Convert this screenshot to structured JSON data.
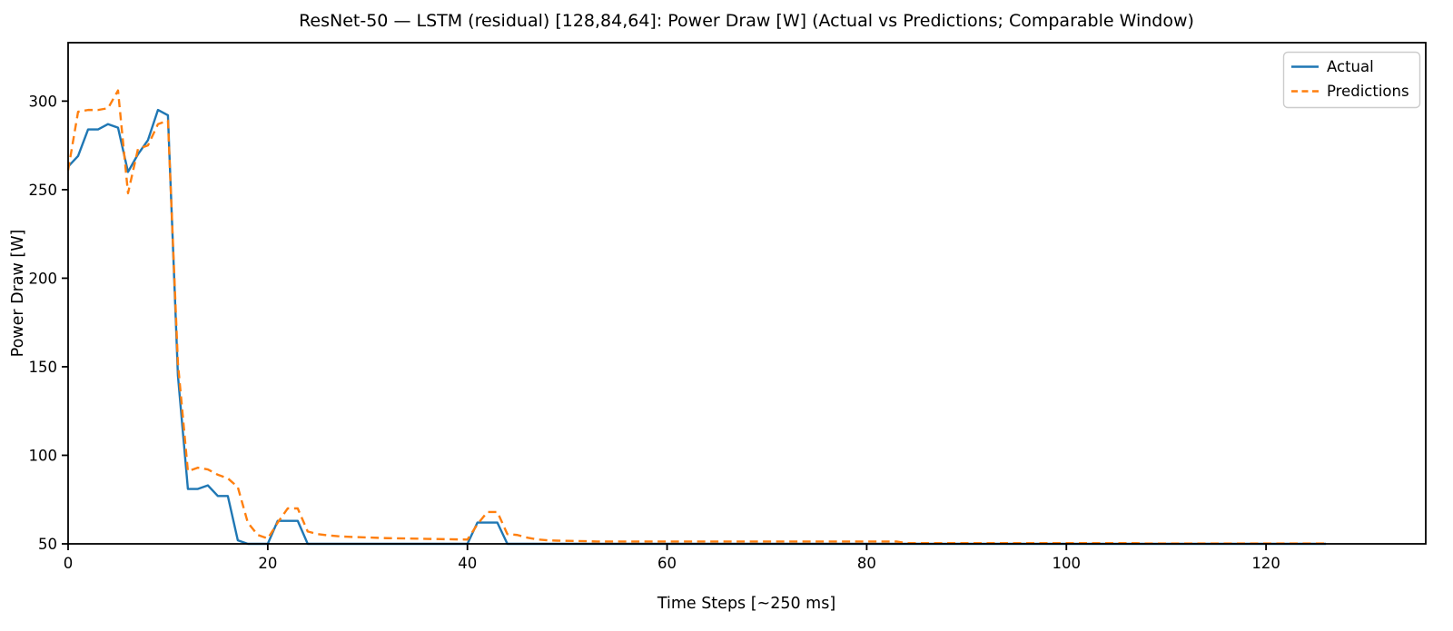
{
  "chart_data": {
    "type": "line",
    "title": "ResNet-50 — LSTM (residual) [128,84,64]: Power Draw [W] (Actual vs Predictions; Comparable Window)",
    "xlabel": "Time Steps [~250 ms]",
    "ylabel": "Power Draw [W]",
    "xlim": [
      0,
      136
    ],
    "ylim": [
      50,
      333
    ],
    "xticks": [
      0,
      20,
      40,
      60,
      80,
      100,
      120
    ],
    "yticks": [
      50,
      100,
      150,
      200,
      250,
      300
    ],
    "grid": false,
    "legend_position": "upper right",
    "background_color": "#ffffff",
    "axis_color": "#000000",
    "legend_border_color": "#cccccc",
    "x_start": 0,
    "x_increment": 1,
    "series": [
      {
        "name": "Actual",
        "color": "#1f77b4",
        "style": "solid",
        "values": [
          263,
          269,
          284,
          284,
          287,
          285,
          260,
          270,
          278,
          295,
          292,
          145,
          81,
          81,
          83,
          77,
          77,
          52,
          50,
          50,
          50,
          63,
          63,
          63,
          50,
          50,
          50,
          50,
          50,
          50,
          50,
          50,
          50,
          50,
          50,
          50,
          50,
          50,
          50,
          50,
          50,
          62,
          62,
          62,
          50,
          50,
          50,
          50,
          50,
          50,
          50,
          50,
          50,
          50,
          50,
          50,
          50,
          50,
          50,
          50,
          50,
          50,
          50,
          50,
          50,
          50,
          50,
          50,
          50,
          50,
          50,
          50,
          50,
          50,
          50,
          50,
          50,
          50,
          50,
          50,
          50,
          50,
          50,
          50,
          50,
          50,
          50,
          50,
          50,
          50,
          50,
          50,
          50,
          50,
          50,
          50,
          50,
          50,
          50,
          50,
          50,
          50,
          50,
          50,
          50,
          50,
          50,
          50,
          50,
          50,
          50,
          50,
          50,
          50,
          50,
          50,
          50,
          50,
          50,
          50,
          50,
          50,
          50,
          50,
          50,
          50,
          50
        ]
      },
      {
        "name": "Predictions",
        "color": "#ff7f0e",
        "style": "dashed",
        "values": [
          261,
          294,
          295,
          295,
          296,
          306,
          248,
          273,
          275,
          287,
          289,
          152,
          91,
          93,
          92,
          89,
          87,
          82,
          62,
          55,
          53,
          62,
          70,
          70,
          57,
          55.5,
          54.8,
          54.3,
          54,
          53.8,
          53.6,
          53.4,
          53.2,
          53.1,
          53,
          52.9,
          52.8,
          52.7,
          52.6,
          52.5,
          52.4,
          61,
          68,
          68,
          55.5,
          55,
          53.5,
          52.5,
          52,
          51.8,
          51.7,
          51.6,
          51.5,
          51.3,
          51.3,
          51.3,
          51.3,
          51.3,
          51.3,
          51.3,
          51.3,
          51.3,
          51.3,
          51.3,
          51.3,
          51.3,
          51.3,
          51.3,
          51.3,
          51.3,
          51.3,
          51.3,
          51.3,
          51.3,
          51.3,
          51.3,
          51.3,
          51.3,
          51.3,
          51.3,
          51.3,
          51.3,
          51.3,
          51.3,
          50.4,
          50.4,
          50.4,
          50.4,
          50.4,
          50.4,
          50.4,
          50.4,
          50.4,
          50.4,
          50.4,
          50.4,
          50.4,
          50.4,
          50.4,
          50.4,
          50.4,
          50.4,
          50.4,
          50.4,
          50.4,
          50.4,
          50.4,
          50.4,
          50.2,
          50.2,
          50.2,
          50.2,
          50.2,
          50.2,
          50.2,
          50.2,
          50.2,
          50.2,
          50.2,
          50.2,
          50.2,
          50.2,
          50.2,
          50.2,
          50.2,
          50.2,
          50.2
        ]
      }
    ]
  }
}
